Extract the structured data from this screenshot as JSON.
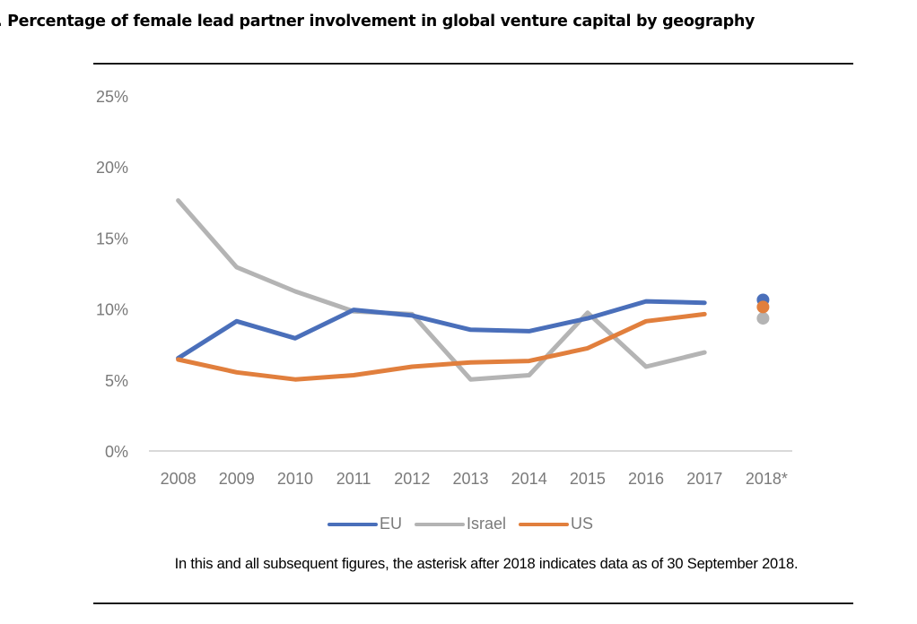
{
  "title": ". Percentage of female lead partner involvement in global venture capital by geography",
  "footnote": "In this and all subsequent figures, the asterisk after 2018 indicates data as of 30 September 2018.",
  "chart_data": {
    "type": "line",
    "title": "Percentage of female lead partner involvement in global venture capital by geography",
    "xlabel": "",
    "ylabel": "",
    "categories": [
      "2008",
      "2009",
      "2010",
      "2011",
      "2012",
      "2013",
      "2014",
      "2015",
      "2016",
      "2017",
      "2018*"
    ],
    "y_ticks": [
      "0%",
      "5%",
      "10%",
      "15%",
      "20%",
      "25%"
    ],
    "y_tick_values": [
      0,
      5,
      10,
      15,
      20,
      25
    ],
    "ylim": [
      0,
      25
    ],
    "grid": false,
    "legend_position": "bottom",
    "series": [
      {
        "name": "EU",
        "color": "#4a6fba",
        "values": [
          6.6,
          9.2,
          8.0,
          10.0,
          9.6,
          8.6,
          8.5,
          9.4,
          10.6,
          10.5,
          10.7
        ],
        "last_point_marker_only": true
      },
      {
        "name": "Israel",
        "color": "#b4b4b4",
        "values": [
          17.7,
          13.0,
          11.3,
          9.9,
          9.7,
          5.1,
          5.4,
          9.8,
          6.0,
          7.0,
          9.4
        ],
        "last_point_marker_only": true
      },
      {
        "name": "US",
        "color": "#e17f3d",
        "values": [
          6.5,
          5.6,
          5.1,
          5.4,
          6.0,
          6.3,
          6.4,
          7.3,
          9.2,
          9.7,
          10.2
        ],
        "last_point_marker_only": true
      }
    ]
  }
}
